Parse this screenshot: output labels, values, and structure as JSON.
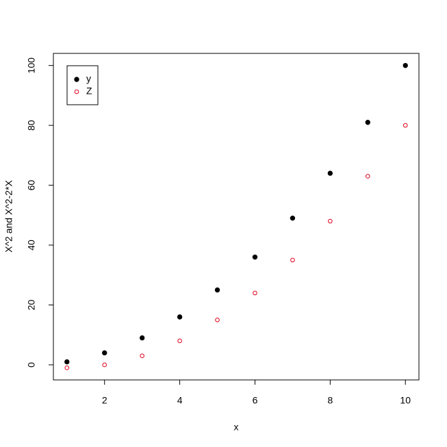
{
  "chart_data": {
    "type": "scatter",
    "x_label": "x",
    "y_label": "X^2 and X^2-2*X",
    "x": [
      1,
      2,
      3,
      4,
      5,
      6,
      7,
      8,
      9,
      10
    ],
    "series": [
      {
        "name": "y",
        "color": "#000000",
        "marker": "filled",
        "values": [
          1,
          4,
          9,
          16,
          25,
          36,
          49,
          64,
          81,
          100
        ]
      },
      {
        "name": "Z",
        "color": "#e0001b",
        "marker": "open",
        "values": [
          -1,
          0,
          3,
          8,
          15,
          24,
          35,
          48,
          63,
          80
        ]
      }
    ],
    "xlim": [
      0.64,
      10.36
    ],
    "ylim": [
      -5.04,
      104.04
    ],
    "xticks": [
      2,
      4,
      6,
      8,
      10
    ],
    "yticks": [
      0,
      20,
      40,
      60,
      80,
      100
    ],
    "legend": "top-left"
  }
}
